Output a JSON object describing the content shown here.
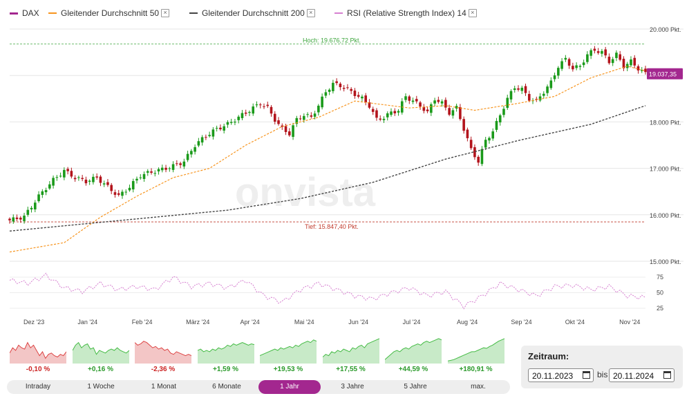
{
  "legend": [
    {
      "label": "DAX",
      "color": "#a3278f",
      "style": "solid",
      "closable": false
    },
    {
      "label": "Gleitender Durchschnitt 50",
      "color": "#f7941d",
      "style": "dashed",
      "closable": true
    },
    {
      "label": "Gleitender Durchschnitt 200",
      "color": "#444444",
      "style": "dashed",
      "closable": true
    },
    {
      "label": "RSI (Relative Strength Index) 14",
      "color": "#d67fd0",
      "style": "dashed",
      "closable": true
    }
  ],
  "chart_data": {
    "type": "candlestick",
    "y_ticks": [
      "20.000 Pkt.",
      "19.000 Pkt.",
      "18.000 Pkt.",
      "17.000 Pkt.",
      "16.000 Pkt.",
      "15.000 Pkt."
    ],
    "y_values": [
      20000,
      19000,
      18000,
      17000,
      16000,
      15000
    ],
    "ylim": [
      15000,
      20000
    ],
    "x_ticks": [
      "Dez '23",
      "Jan '24",
      "Feb '24",
      "März '24",
      "Apr '24",
      "Mai '24",
      "Jun '24",
      "Jul '24",
      "Aug '24",
      "Sep '24",
      "Okt '24",
      "Nov '24"
    ],
    "high_label": "Hoch: 19.676,72 Pkt.",
    "high_value": 19676.72,
    "low_label": "Tief: 15.847,40 Pkt.",
    "low_value": 15847.4,
    "last_label": "19.037,35",
    "last_value": 19037.35,
    "close_points": [
      [
        0,
        15880
      ],
      [
        4,
        15960
      ],
      [
        8,
        16400
      ],
      [
        12,
        16750
      ],
      [
        15,
        16950
      ],
      [
        18,
        16800
      ],
      [
        21,
        16720
      ],
      [
        24,
        16800
      ],
      [
        27,
        16600
      ],
      [
        30,
        16400
      ],
      [
        33,
        16600
      ],
      [
        36,
        16850
      ],
      [
        39,
        16920
      ],
      [
        42,
        16980
      ],
      [
        45,
        17050
      ],
      [
        48,
        17150
      ],
      [
        51,
        17500
      ],
      [
        54,
        17700
      ],
      [
        57,
        17850
      ],
      [
        60,
        17950
      ],
      [
        63,
        18100
      ],
      [
        66,
        18250
      ],
      [
        69,
        18400
      ],
      [
        71,
        18300
      ],
      [
        73,
        18050
      ],
      [
        75,
        17850
      ],
      [
        77,
        17750
      ],
      [
        79,
        18050
      ],
      [
        81,
        18150
      ],
      [
        83,
        18100
      ],
      [
        85,
        18350
      ],
      [
        87,
        18650
      ],
      [
        89,
        18820
      ],
      [
        91,
        18780
      ],
      [
        93,
        18700
      ],
      [
        95,
        18600
      ],
      [
        97,
        18500
      ],
      [
        99,
        18350
      ],
      [
        101,
        18050
      ],
      [
        103,
        18100
      ],
      [
        105,
        18200
      ],
      [
        107,
        18250
      ],
      [
        109,
        18550
      ],
      [
        111,
        18450
      ],
      [
        113,
        18350
      ],
      [
        115,
        18200
      ],
      [
        117,
        18500
      ],
      [
        119,
        18400
      ],
      [
        121,
        18200
      ],
      [
        123,
        18300
      ],
      [
        125,
        17850
      ],
      [
        127,
        17400
      ],
      [
        129,
        17150
      ],
      [
        131,
        17600
      ],
      [
        133,
        17800
      ],
      [
        135,
        18150
      ],
      [
        137,
        18500
      ],
      [
        139,
        18750
      ],
      [
        141,
        18700
      ],
      [
        143,
        18500
      ],
      [
        145,
        18450
      ],
      [
        147,
        18650
      ],
      [
        149,
        18850
      ],
      [
        151,
        19200
      ],
      [
        153,
        19350
      ],
      [
        155,
        19150
      ],
      [
        157,
        19200
      ],
      [
        159,
        19450
      ],
      [
        161,
        19550
      ],
      [
        163,
        19500
      ],
      [
        165,
        19300
      ],
      [
        167,
        19450
      ],
      [
        169,
        19200
      ],
      [
        171,
        19300
      ],
      [
        173,
        19150
      ],
      [
        175,
        19037
      ]
    ],
    "ma50": [
      [
        0,
        15200
      ],
      [
        15,
        15400
      ],
      [
        25,
        15950
      ],
      [
        35,
        16400
      ],
      [
        45,
        16800
      ],
      [
        55,
        17000
      ],
      [
        65,
        17500
      ],
      [
        75,
        17900
      ],
      [
        85,
        18100
      ],
      [
        95,
        18450
      ],
      [
        110,
        18300
      ],
      [
        120,
        18350
      ],
      [
        128,
        18250
      ],
      [
        140,
        18400
      ],
      [
        150,
        18550
      ],
      [
        160,
        18950
      ],
      [
        170,
        19200
      ],
      [
        175,
        19100
      ]
    ],
    "ma200": [
      [
        0,
        15650
      ],
      [
        20,
        15800
      ],
      [
        40,
        15950
      ],
      [
        60,
        16100
      ],
      [
        80,
        16350
      ],
      [
        100,
        16700
      ],
      [
        120,
        17200
      ],
      [
        140,
        17600
      ],
      [
        160,
        17950
      ],
      [
        175,
        18350
      ]
    ],
    "rsi_ticks": [
      "75",
      "50",
      "25"
    ],
    "rsi_values": [
      75,
      50,
      25
    ],
    "rsi_points": [
      [
        0,
        70
      ],
      [
        5,
        65
      ],
      [
        10,
        78
      ],
      [
        15,
        58
      ],
      [
        20,
        52
      ],
      [
        25,
        65
      ],
      [
        30,
        55
      ],
      [
        35,
        60
      ],
      [
        40,
        55
      ],
      [
        45,
        75
      ],
      [
        50,
        60
      ],
      [
        55,
        65
      ],
      [
        60,
        58
      ],
      [
        65,
        70
      ],
      [
        70,
        45
      ],
      [
        75,
        35
      ],
      [
        80,
        55
      ],
      [
        85,
        65
      ],
      [
        90,
        55
      ],
      [
        95,
        45
      ],
      [
        100,
        40
      ],
      [
        105,
        50
      ],
      [
        110,
        58
      ],
      [
        115,
        45
      ],
      [
        120,
        52
      ],
      [
        125,
        28
      ],
      [
        130,
        45
      ],
      [
        135,
        65
      ],
      [
        140,
        55
      ],
      [
        145,
        45
      ],
      [
        150,
        60
      ],
      [
        155,
        62
      ],
      [
        160,
        55
      ],
      [
        165,
        60
      ],
      [
        170,
        45
      ],
      [
        175,
        42
      ]
    ]
  },
  "watermark": "onvista",
  "sparks": [
    {
      "label": "-0,10 %",
      "color": "#cc2222",
      "fill": "#f3c6c6",
      "stroke": "#d44",
      "points": [
        0.4,
        0.6,
        0.5,
        0.7,
        0.6,
        0.55,
        0.8,
        0.6,
        0.7,
        0.5,
        0.3,
        0.45,
        0.2,
        0.35,
        0.4,
        0.3,
        0.25,
        0.35,
        0.3,
        0.45
      ]
    },
    {
      "label": "+0,16 %",
      "color": "#2a9a2a",
      "fill": "#c8eac8",
      "stroke": "#4b4",
      "points": [
        0.5,
        0.7,
        0.8,
        0.6,
        0.7,
        0.75,
        0.55,
        0.6,
        0.35,
        0.5,
        0.45,
        0.4,
        0.5,
        0.55,
        0.5,
        0.6,
        0.5,
        0.45,
        0.4,
        0.5
      ]
    },
    {
      "label": "-2,36 %",
      "color": "#cc2222",
      "fill": "#f3c6c6",
      "stroke": "#d44",
      "points": [
        0.8,
        0.7,
        0.75,
        0.85,
        0.8,
        0.7,
        0.6,
        0.65,
        0.55,
        0.6,
        0.5,
        0.55,
        0.4,
        0.35,
        0.45,
        0.4,
        0.35,
        0.3,
        0.35,
        0.3
      ]
    },
    {
      "label": "+1,59 %",
      "color": "#2a9a2a",
      "fill": "#c8eac8",
      "stroke": "#4b4",
      "points": [
        0.5,
        0.55,
        0.45,
        0.5,
        0.45,
        0.55,
        0.5,
        0.6,
        0.55,
        0.6,
        0.7,
        0.65,
        0.75,
        0.7,
        0.75,
        0.8,
        0.75,
        0.7,
        0.75,
        0.72
      ]
    },
    {
      "label": "+19,53 %",
      "color": "#2a9a2a",
      "fill": "#c8eac8",
      "stroke": "#4b4",
      "points": [
        0.3,
        0.35,
        0.4,
        0.45,
        0.5,
        0.55,
        0.5,
        0.6,
        0.55,
        0.6,
        0.65,
        0.6,
        0.7,
        0.65,
        0.75,
        0.8,
        0.85,
        0.8,
        0.9,
        0.85
      ]
    },
    {
      "label": "+17,55 %",
      "color": "#2a9a2a",
      "fill": "#c8eac8",
      "stroke": "#4b4",
      "points": [
        0.25,
        0.35,
        0.3,
        0.45,
        0.4,
        0.5,
        0.45,
        0.55,
        0.5,
        0.45,
        0.6,
        0.55,
        0.65,
        0.7,
        0.6,
        0.75,
        0.8,
        0.85,
        0.9,
        0.95
      ]
    },
    {
      "label": "+44,59 %",
      "color": "#2a9a2a",
      "fill": "#c8eac8",
      "stroke": "#4b4",
      "points": [
        0.15,
        0.25,
        0.35,
        0.45,
        0.5,
        0.45,
        0.55,
        0.6,
        0.55,
        0.65,
        0.7,
        0.75,
        0.7,
        0.8,
        0.85,
        0.8,
        0.85,
        0.9,
        0.95,
        0.9
      ]
    },
    {
      "label": "+180,91 %",
      "color": "#2a9a2a",
      "fill": "#c8eac8",
      "stroke": "#4b4",
      "points": [
        0.1,
        0.12,
        0.15,
        0.2,
        0.25,
        0.3,
        0.35,
        0.4,
        0.45,
        0.45,
        0.5,
        0.55,
        0.6,
        0.58,
        0.65,
        0.7,
        0.78,
        0.85,
        0.9,
        0.95
      ]
    }
  ],
  "ranges": [
    {
      "label": "Intraday",
      "active": false
    },
    {
      "label": "1 Woche",
      "active": false
    },
    {
      "label": "1 Monat",
      "active": false
    },
    {
      "label": "6 Monate",
      "active": false
    },
    {
      "label": "1 Jahr",
      "active": true
    },
    {
      "label": "3 Jahre",
      "active": false
    },
    {
      "label": "5 Jahre",
      "active": false
    },
    {
      "label": "max.",
      "active": false
    }
  ],
  "zeitraum": {
    "title": "Zeitraum:",
    "from": "20.11.2023",
    "to": "20.11.2024",
    "bis": "bis"
  }
}
